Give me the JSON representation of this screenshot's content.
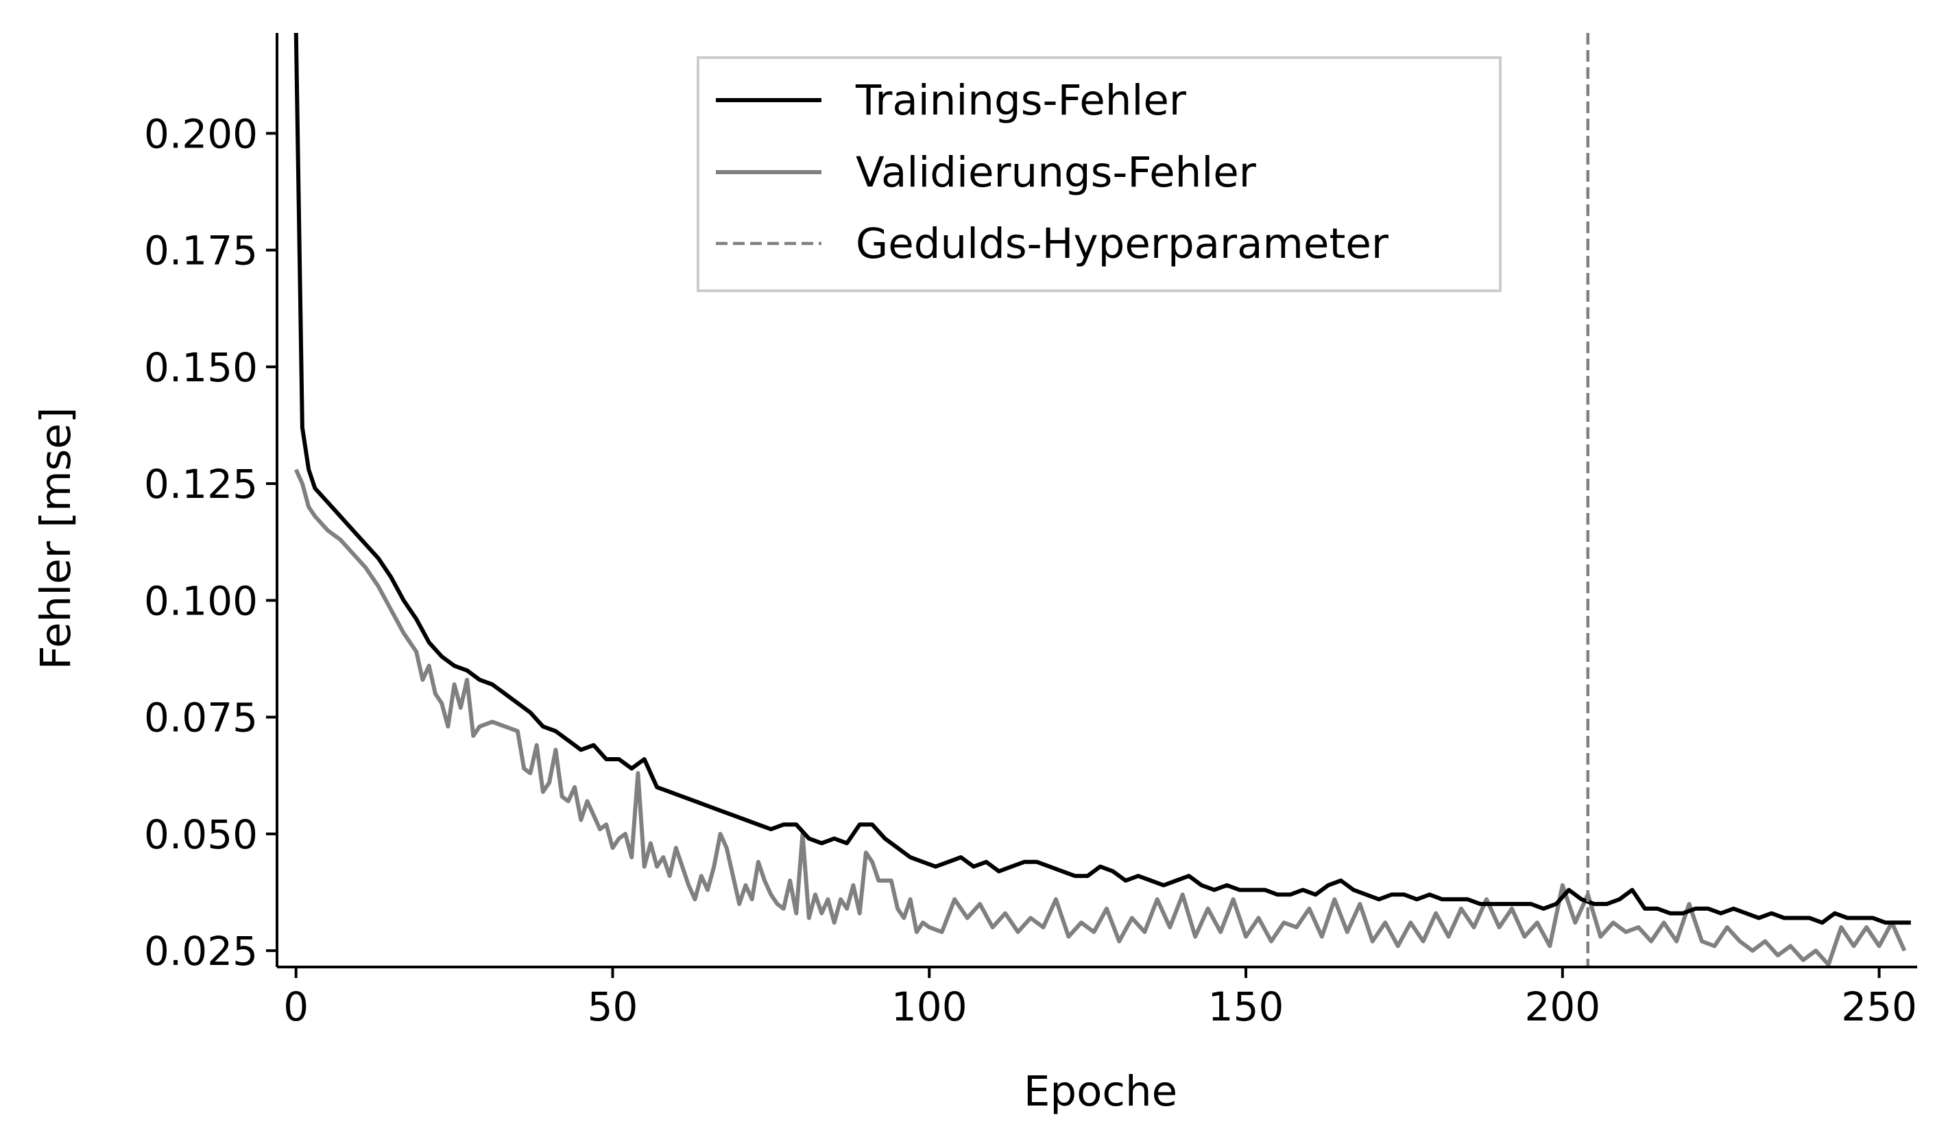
{
  "chart_data": {
    "type": "line",
    "xlabel": "Epoche",
    "ylabel": "Fehler [mse]",
    "xlim": [
      -3,
      256
    ],
    "ylim": [
      0.0215,
      0.2215
    ],
    "xticks": [
      0,
      50,
      100,
      150,
      200,
      250
    ],
    "xtick_labels": [
      "0",
      "50",
      "100",
      "150",
      "200",
      "250"
    ],
    "yticks": [
      0.025,
      0.05,
      0.075,
      0.1,
      0.125,
      0.15,
      0.175,
      0.2
    ],
    "ytick_labels": [
      "0.025",
      "0.050",
      "0.075",
      "0.100",
      "0.125",
      "0.150",
      "0.175",
      "0.200"
    ],
    "grid": false,
    "legend_position": "top-center",
    "series": [
      {
        "name": "Trainings-Fehler",
        "color": "#000000",
        "style": "solid",
        "points": [
          [
            0,
            0.222
          ],
          [
            1,
            0.137
          ],
          [
            2,
            0.128
          ],
          [
            3,
            0.124
          ],
          [
            5,
            0.121
          ],
          [
            7,
            0.118
          ],
          [
            9,
            0.115
          ],
          [
            11,
            0.112
          ],
          [
            13,
            0.109
          ],
          [
            15,
            0.105
          ],
          [
            17,
            0.1
          ],
          [
            19,
            0.096
          ],
          [
            21,
            0.091
          ],
          [
            23,
            0.088
          ],
          [
            25,
            0.086
          ],
          [
            27,
            0.085
          ],
          [
            29,
            0.083
          ],
          [
            31,
            0.082
          ],
          [
            33,
            0.08
          ],
          [
            35,
            0.078
          ],
          [
            37,
            0.076
          ],
          [
            39,
            0.073
          ],
          [
            41,
            0.072
          ],
          [
            43,
            0.07
          ],
          [
            45,
            0.068
          ],
          [
            47,
            0.069
          ],
          [
            49,
            0.066
          ],
          [
            51,
            0.066
          ],
          [
            53,
            0.064
          ],
          [
            55,
            0.066
          ],
          [
            57,
            0.06
          ],
          [
            59,
            0.059
          ],
          [
            61,
            0.058
          ],
          [
            63,
            0.057
          ],
          [
            65,
            0.056
          ],
          [
            67,
            0.055
          ],
          [
            69,
            0.054
          ],
          [
            71,
            0.053
          ],
          [
            73,
            0.052
          ],
          [
            75,
            0.051
          ],
          [
            77,
            0.052
          ],
          [
            79,
            0.052
          ],
          [
            81,
            0.049
          ],
          [
            83,
            0.048
          ],
          [
            85,
            0.049
          ],
          [
            87,
            0.048
          ],
          [
            89,
            0.052
          ],
          [
            91,
            0.052
          ],
          [
            93,
            0.049
          ],
          [
            95,
            0.047
          ],
          [
            97,
            0.045
          ],
          [
            99,
            0.044
          ],
          [
            101,
            0.043
          ],
          [
            103,
            0.044
          ],
          [
            105,
            0.045
          ],
          [
            107,
            0.043
          ],
          [
            109,
            0.044
          ],
          [
            111,
            0.042
          ],
          [
            113,
            0.043
          ],
          [
            115,
            0.044
          ],
          [
            117,
            0.044
          ],
          [
            119,
            0.043
          ],
          [
            121,
            0.042
          ],
          [
            123,
            0.041
          ],
          [
            125,
            0.041
          ],
          [
            127,
            0.043
          ],
          [
            129,
            0.042
          ],
          [
            131,
            0.04
          ],
          [
            133,
            0.041
          ],
          [
            135,
            0.04
          ],
          [
            137,
            0.039
          ],
          [
            139,
            0.04
          ],
          [
            141,
            0.041
          ],
          [
            143,
            0.039
          ],
          [
            145,
            0.038
          ],
          [
            147,
            0.039
          ],
          [
            149,
            0.038
          ],
          [
            151,
            0.038
          ],
          [
            153,
            0.038
          ],
          [
            155,
            0.037
          ],
          [
            157,
            0.037
          ],
          [
            159,
            0.038
          ],
          [
            161,
            0.037
          ],
          [
            163,
            0.039
          ],
          [
            165,
            0.04
          ],
          [
            167,
            0.038
          ],
          [
            169,
            0.037
          ],
          [
            171,
            0.036
          ],
          [
            173,
            0.037
          ],
          [
            175,
            0.037
          ],
          [
            177,
            0.036
          ],
          [
            179,
            0.037
          ],
          [
            181,
            0.036
          ],
          [
            183,
            0.036
          ],
          [
            185,
            0.036
          ],
          [
            187,
            0.035
          ],
          [
            189,
            0.035
          ],
          [
            191,
            0.035
          ],
          [
            193,
            0.035
          ],
          [
            195,
            0.035
          ],
          [
            197,
            0.034
          ],
          [
            199,
            0.035
          ],
          [
            201,
            0.038
          ],
          [
            203,
            0.036
          ],
          [
            205,
            0.035
          ],
          [
            207,
            0.035
          ],
          [
            209,
            0.036
          ],
          [
            211,
            0.038
          ],
          [
            213,
            0.034
          ],
          [
            215,
            0.034
          ],
          [
            217,
            0.033
          ],
          [
            219,
            0.033
          ],
          [
            221,
            0.034
          ],
          [
            223,
            0.034
          ],
          [
            225,
            0.033
          ],
          [
            227,
            0.034
          ],
          [
            229,
            0.033
          ],
          [
            231,
            0.032
          ],
          [
            233,
            0.033
          ],
          [
            235,
            0.032
          ],
          [
            237,
            0.032
          ],
          [
            239,
            0.032
          ],
          [
            241,
            0.031
          ],
          [
            243,
            0.033
          ],
          [
            245,
            0.032
          ],
          [
            247,
            0.032
          ],
          [
            249,
            0.032
          ],
          [
            251,
            0.031
          ],
          [
            253,
            0.031
          ],
          [
            255,
            0.031
          ]
        ]
      },
      {
        "name": "Validierungs-Fehler",
        "color": "#808080",
        "style": "solid",
        "points": [
          [
            0,
            0.128
          ],
          [
            1,
            0.125
          ],
          [
            2,
            0.12
          ],
          [
            3,
            0.118
          ],
          [
            5,
            0.115
          ],
          [
            7,
            0.113
          ],
          [
            9,
            0.11
          ],
          [
            11,
            0.107
          ],
          [
            13,
            0.103
          ],
          [
            15,
            0.098
          ],
          [
            17,
            0.093
          ],
          [
            19,
            0.089
          ],
          [
            20,
            0.083
          ],
          [
            21,
            0.086
          ],
          [
            22,
            0.08
          ],
          [
            23,
            0.078
          ],
          [
            24,
            0.073
          ],
          [
            25,
            0.082
          ],
          [
            26,
            0.077
          ],
          [
            27,
            0.083
          ],
          [
            28,
            0.071
          ],
          [
            29,
            0.073
          ],
          [
            31,
            0.074
          ],
          [
            33,
            0.073
          ],
          [
            35,
            0.072
          ],
          [
            36,
            0.064
          ],
          [
            37,
            0.063
          ],
          [
            38,
            0.069
          ],
          [
            39,
            0.059
          ],
          [
            40,
            0.061
          ],
          [
            41,
            0.068
          ],
          [
            42,
            0.058
          ],
          [
            43,
            0.057
          ],
          [
            44,
            0.06
          ],
          [
            45,
            0.053
          ],
          [
            46,
            0.057
          ],
          [
            47,
            0.054
          ],
          [
            48,
            0.051
          ],
          [
            49,
            0.052
          ],
          [
            50,
            0.047
          ],
          [
            51,
            0.049
          ],
          [
            52,
            0.05
          ],
          [
            53,
            0.045
          ],
          [
            54,
            0.063
          ],
          [
            55,
            0.043
          ],
          [
            56,
            0.048
          ],
          [
            57,
            0.043
          ],
          [
            58,
            0.045
          ],
          [
            59,
            0.041
          ],
          [
            60,
            0.047
          ],
          [
            61,
            0.043
          ],
          [
            62,
            0.039
          ],
          [
            63,
            0.036
          ],
          [
            64,
            0.041
          ],
          [
            65,
            0.038
          ],
          [
            66,
            0.043
          ],
          [
            67,
            0.05
          ],
          [
            68,
            0.047
          ],
          [
            69,
            0.041
          ],
          [
            70,
            0.035
          ],
          [
            71,
            0.039
          ],
          [
            72,
            0.036
          ],
          [
            73,
            0.044
          ],
          [
            74,
            0.04
          ],
          [
            75,
            0.037
          ],
          [
            76,
            0.035
          ],
          [
            77,
            0.034
          ],
          [
            78,
            0.04
          ],
          [
            79,
            0.033
          ],
          [
            80,
            0.05
          ],
          [
            81,
            0.032
          ],
          [
            82,
            0.037
          ],
          [
            83,
            0.033
          ],
          [
            84,
            0.036
          ],
          [
            85,
            0.031
          ],
          [
            86,
            0.036
          ],
          [
            87,
            0.034
          ],
          [
            88,
            0.039
          ],
          [
            89,
            0.033
          ],
          [
            90,
            0.046
          ],
          [
            91,
            0.044
          ],
          [
            92,
            0.04
          ],
          [
            93,
            0.04
          ],
          [
            94,
            0.04
          ],
          [
            95,
            0.034
          ],
          [
            96,
            0.032
          ],
          [
            97,
            0.036
          ],
          [
            98,
            0.029
          ],
          [
            99,
            0.031
          ],
          [
            100,
            0.03
          ],
          [
            102,
            0.029
          ],
          [
            104,
            0.036
          ],
          [
            106,
            0.032
          ],
          [
            108,
            0.035
          ],
          [
            110,
            0.03
          ],
          [
            112,
            0.033
          ],
          [
            114,
            0.029
          ],
          [
            116,
            0.032
          ],
          [
            118,
            0.03
          ],
          [
            120,
            0.036
          ],
          [
            122,
            0.028
          ],
          [
            124,
            0.031
          ],
          [
            126,
            0.029
          ],
          [
            128,
            0.034
          ],
          [
            130,
            0.027
          ],
          [
            132,
            0.032
          ],
          [
            134,
            0.029
          ],
          [
            136,
            0.036
          ],
          [
            138,
            0.03
          ],
          [
            140,
            0.037
          ],
          [
            142,
            0.028
          ],
          [
            144,
            0.034
          ],
          [
            146,
            0.029
          ],
          [
            148,
            0.036
          ],
          [
            150,
            0.028
          ],
          [
            152,
            0.032
          ],
          [
            154,
            0.027
          ],
          [
            156,
            0.031
          ],
          [
            158,
            0.03
          ],
          [
            160,
            0.034
          ],
          [
            162,
            0.028
          ],
          [
            164,
            0.036
          ],
          [
            166,
            0.029
          ],
          [
            168,
            0.035
          ],
          [
            170,
            0.027
          ],
          [
            172,
            0.031
          ],
          [
            174,
            0.026
          ],
          [
            176,
            0.031
          ],
          [
            178,
            0.027
          ],
          [
            180,
            0.033
          ],
          [
            182,
            0.028
          ],
          [
            184,
            0.034
          ],
          [
            186,
            0.03
          ],
          [
            188,
            0.036
          ],
          [
            190,
            0.03
          ],
          [
            192,
            0.034
          ],
          [
            194,
            0.028
          ],
          [
            196,
            0.031
          ],
          [
            198,
            0.026
          ],
          [
            200,
            0.039
          ],
          [
            202,
            0.031
          ],
          [
            204,
            0.037
          ],
          [
            206,
            0.028
          ],
          [
            208,
            0.031
          ],
          [
            210,
            0.029
          ],
          [
            212,
            0.03
          ],
          [
            214,
            0.027
          ],
          [
            216,
            0.031
          ],
          [
            218,
            0.027
          ],
          [
            220,
            0.035
          ],
          [
            222,
            0.027
          ],
          [
            224,
            0.026
          ],
          [
            226,
            0.03
          ],
          [
            228,
            0.027
          ],
          [
            230,
            0.025
          ],
          [
            232,
            0.027
          ],
          [
            234,
            0.024
          ],
          [
            236,
            0.026
          ],
          [
            238,
            0.023
          ],
          [
            240,
            0.025
          ],
          [
            242,
            0.022
          ],
          [
            244,
            0.03
          ],
          [
            246,
            0.026
          ],
          [
            248,
            0.03
          ],
          [
            250,
            0.026
          ],
          [
            252,
            0.031
          ],
          [
            254,
            0.025
          ]
        ]
      },
      {
        "name": "Gedulds-Hyperparameter",
        "color": "#808080",
        "style": "dashed",
        "x": 204
      }
    ]
  }
}
